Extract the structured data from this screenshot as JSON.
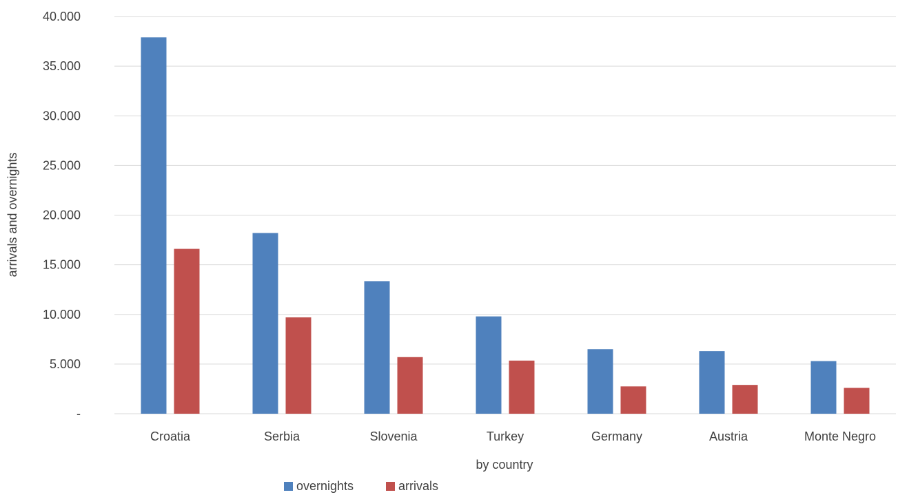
{
  "chart_data": {
    "type": "bar",
    "title": "",
    "xlabel": "by country",
    "ylabel": "arrivals and overnights",
    "categories": [
      "Croatia",
      "Serbia",
      "Slovenia",
      "Turkey",
      "Germany",
      "Austria",
      "Monte Negro"
    ],
    "series": [
      {
        "name": "overnights",
        "color": "#4f81bd",
        "values": [
          37900,
          18200,
          13350,
          9800,
          6500,
          6300,
          5300
        ]
      },
      {
        "name": "arrivals",
        "color": "#c0504d",
        "values": [
          16600,
          9700,
          5700,
          5350,
          2750,
          2900,
          2600
        ]
      }
    ],
    "ylim": [
      0,
      40000
    ],
    "yticks": [
      {
        "value": 0,
        "label": "-"
      },
      {
        "value": 5000,
        "label": "5.000"
      },
      {
        "value": 10000,
        "label": "10.000"
      },
      {
        "value": 15000,
        "label": "15.000"
      },
      {
        "value": 20000,
        "label": "20.000"
      },
      {
        "value": 25000,
        "label": "25.000"
      },
      {
        "value": 30000,
        "label": "30.000"
      },
      {
        "value": 35000,
        "label": "35.000"
      },
      {
        "value": 40000,
        "label": "40.000"
      }
    ],
    "grid": true,
    "legend_position": "bottom"
  }
}
